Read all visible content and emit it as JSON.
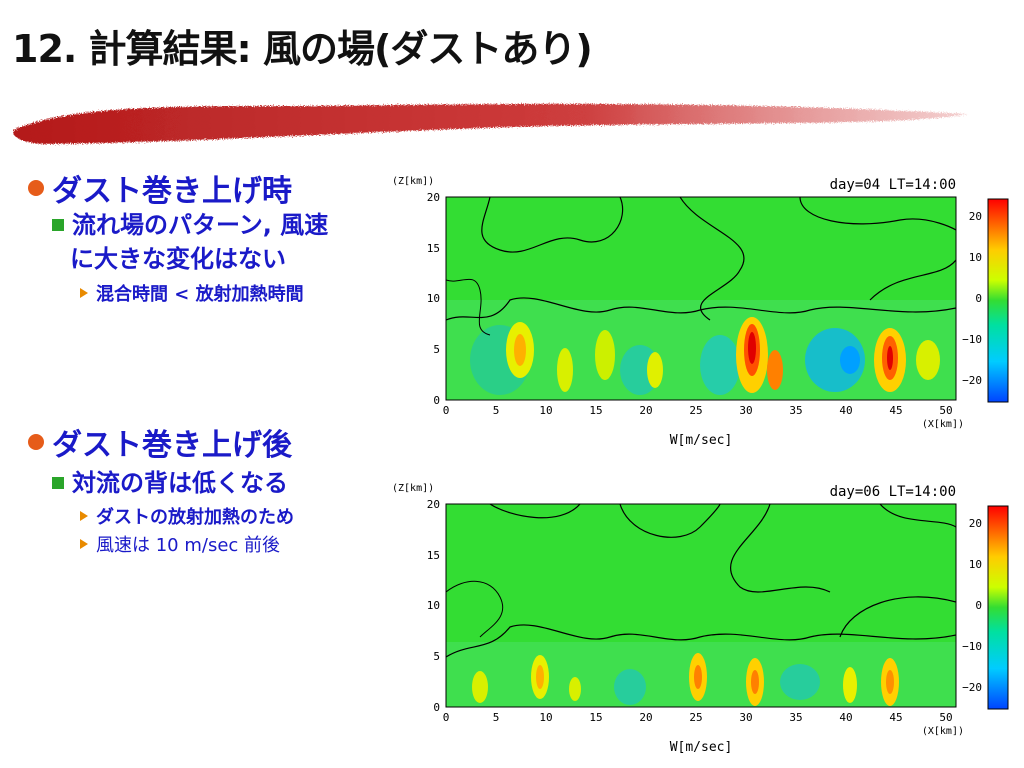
{
  "slide": {
    "title": "12. 計算結果: 風の場(ダストあり)"
  },
  "bullets": {
    "section1": {
      "heading": "ダスト巻き上げ時",
      "point_line1": "流れ場のパターン, 風速",
      "point_line2": "に大きな変化はない",
      "sub": "混合時間 < 放射加熱時間"
    },
    "section2": {
      "heading": "ダスト巻き上げ後",
      "point": "対流の背は低くなる",
      "sub1": "ダストの放射加熱のため",
      "sub2": "風速は 10 m/sec 前後"
    }
  },
  "colors": {
    "title": "#111111",
    "bullet_text": "#1a1ac8",
    "bullet_dot": "#e65c1a",
    "square_bullet": "#2aa52a",
    "triangle_bullet": "#e88a00",
    "brush": "#c01818",
    "field_background": "#33dd33"
  },
  "panels": [
    {
      "z_axis_label": "(Z[km])",
      "x_axis_label": "(X[km])",
      "caption": "W[m/sec]",
      "timestamp": "day=04 LT=14:00",
      "y_ticks": [
        "20",
        "15",
        "10",
        "5",
        "0"
      ],
      "x_ticks": [
        "0",
        "5",
        "10",
        "15",
        "20",
        "25",
        "30",
        "35",
        "40",
        "45",
        "50"
      ],
      "colorbar_ticks": [
        "20",
        "10",
        "0",
        "−10",
        "−20"
      ]
    },
    {
      "z_axis_label": "(Z[km])",
      "x_axis_label": "(X[km])",
      "caption": "W[m/sec]",
      "timestamp": "day=06 LT=14:00",
      "y_ticks": [
        "20",
        "15",
        "10",
        "5",
        "0"
      ],
      "x_ticks": [
        "0",
        "5",
        "10",
        "15",
        "20",
        "25",
        "30",
        "35",
        "40",
        "45",
        "50"
      ],
      "colorbar_ticks": [
        "20",
        "10",
        "0",
        "−10",
        "−20"
      ]
    }
  ]
}
